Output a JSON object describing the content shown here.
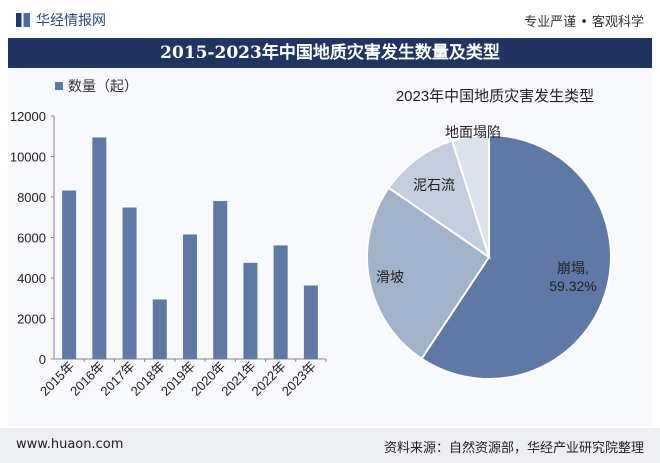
{
  "header": {
    "logo_text": "华经情报网",
    "slogan": "专业严谨 • 客观科学"
  },
  "title": "2015-2023年中国地质灾害发生数量及类型",
  "footer": {
    "url": "www.huaon.com",
    "source": "资料来源：自然资源部，华经产业研究院整理"
  },
  "watermark": {
    "text": "华经产业研究院",
    "url": "www.huaon.com"
  },
  "colors": {
    "bar": "#5f79a6",
    "pie": [
      "#5f79a6",
      "#a3b2cb",
      "#c4ceddd",
      "#dde3ec"
    ],
    "title_bg": "#1f3460"
  },
  "chart_data": [
    {
      "type": "bar",
      "title": "",
      "legend": "数量（起）",
      "legend_position": "top-left",
      "categories": [
        "2015年",
        "2016年",
        "2017年",
        "2018年",
        "2019年",
        "2020年",
        "2021年",
        "2022年",
        "2023年"
      ],
      "values": [
        8320,
        10940,
        7480,
        2940,
        6150,
        7800,
        4750,
        5610,
        3630
      ],
      "ylim": [
        0,
        12000
      ],
      "yticks": [
        "0",
        "2000",
        "4000",
        "6000",
        "8000",
        "10000",
        "12000"
      ],
      "xlabel": "",
      "ylabel": ""
    },
    {
      "type": "pie",
      "title": "2023年中国地质灾害发生类型",
      "labels": [
        "崩塌",
        "滑坡",
        "泥石流",
        "地面塌陷"
      ],
      "values": [
        59.32,
        25.3,
        10.5,
        4.88
      ],
      "data_labels": [
        "崩塌,",
        "滑坡",
        "泥石流",
        "地面塌陷"
      ],
      "value_label": "59.32%"
    }
  ]
}
